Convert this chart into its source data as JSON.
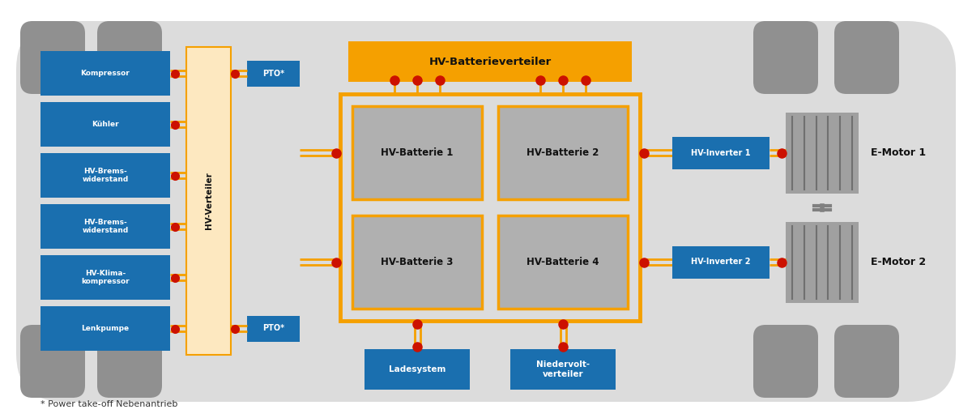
{
  "bg_color": "#dcdcdc",
  "blue_box_color": "#1a6faf",
  "orange_color": "#f5a000",
  "gray_battery": "#b0b0b0",
  "red_connector": "#cc1100",
  "cream_color": "#fde8c0",
  "white": "#ffffff",
  "black": "#111111",
  "wheel_color": "#909090",
  "motor_color": "#a0a0a0",
  "motor_line_color": "#707070",
  "axle_color": "#808080",
  "left_components": [
    "Kompressor",
    "Kühler",
    "HV-Brems-\nwiderstand",
    "HV-Brems-\nwiderstand",
    "HV-Klima-\nkompressor",
    "Lenkpumpe"
  ],
  "battery_labels": [
    "HV-Batterie 1",
    "HV-Batterie 2",
    "HV-Batterie 3",
    "HV-Batterie 4"
  ],
  "footer_text": "* Power take-off Nebenantrieb",
  "fig_width": 12.0,
  "fig_height": 5.16,
  "dpi": 100
}
